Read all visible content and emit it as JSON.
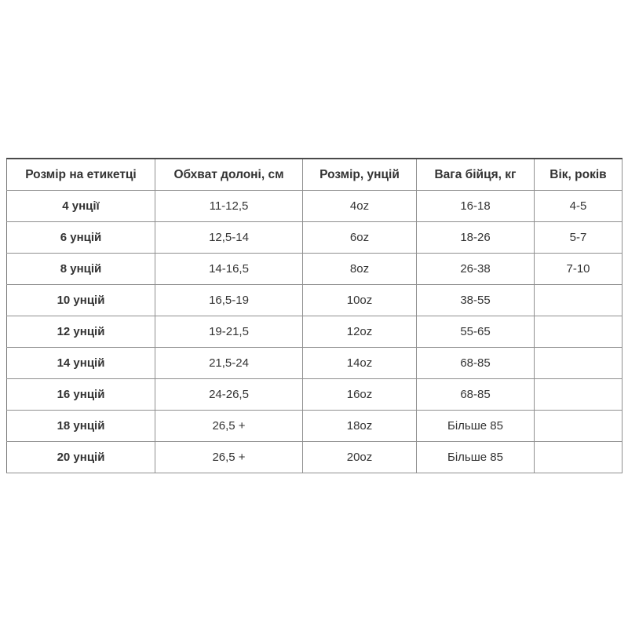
{
  "table": {
    "name": "glove-size-chart",
    "headers": [
      "Розмір на етикетці",
      "Обхват долоні, см",
      "Розмір, унцій",
      "Вага бійця, кг",
      "Вік, років"
    ],
    "rows": [
      [
        "4 унції",
        "11-12,5",
        "4oz",
        "16-18",
        "4-5"
      ],
      [
        "6 унцій",
        "12,5-14",
        "6oz",
        "18-26",
        "5-7"
      ],
      [
        "8 унцій",
        "14-16,5",
        "8oz",
        "26-38",
        "7-10"
      ],
      [
        "10 унцій",
        "16,5-19",
        "10oz",
        "38-55",
        ""
      ],
      [
        "12 унцій",
        "19-21,5",
        "12oz",
        "55-65",
        ""
      ],
      [
        "14 унцій",
        "21,5-24",
        "14oz",
        "68-85",
        ""
      ],
      [
        "16 унцій",
        "24-26,5",
        "16oz",
        "68-85",
        ""
      ],
      [
        "18 унцій",
        "26,5 +",
        "18oz",
        "Більше 85",
        ""
      ],
      [
        "20 унцій",
        "26,5 +",
        "20oz",
        "Більше 85",
        ""
      ]
    ]
  },
  "colors": {
    "background": "#ffffff",
    "text": "#333333",
    "border_inner": "#8f8f8f",
    "border_outer": "#6e6e6e",
    "border_top": "#4a4a4a"
  }
}
